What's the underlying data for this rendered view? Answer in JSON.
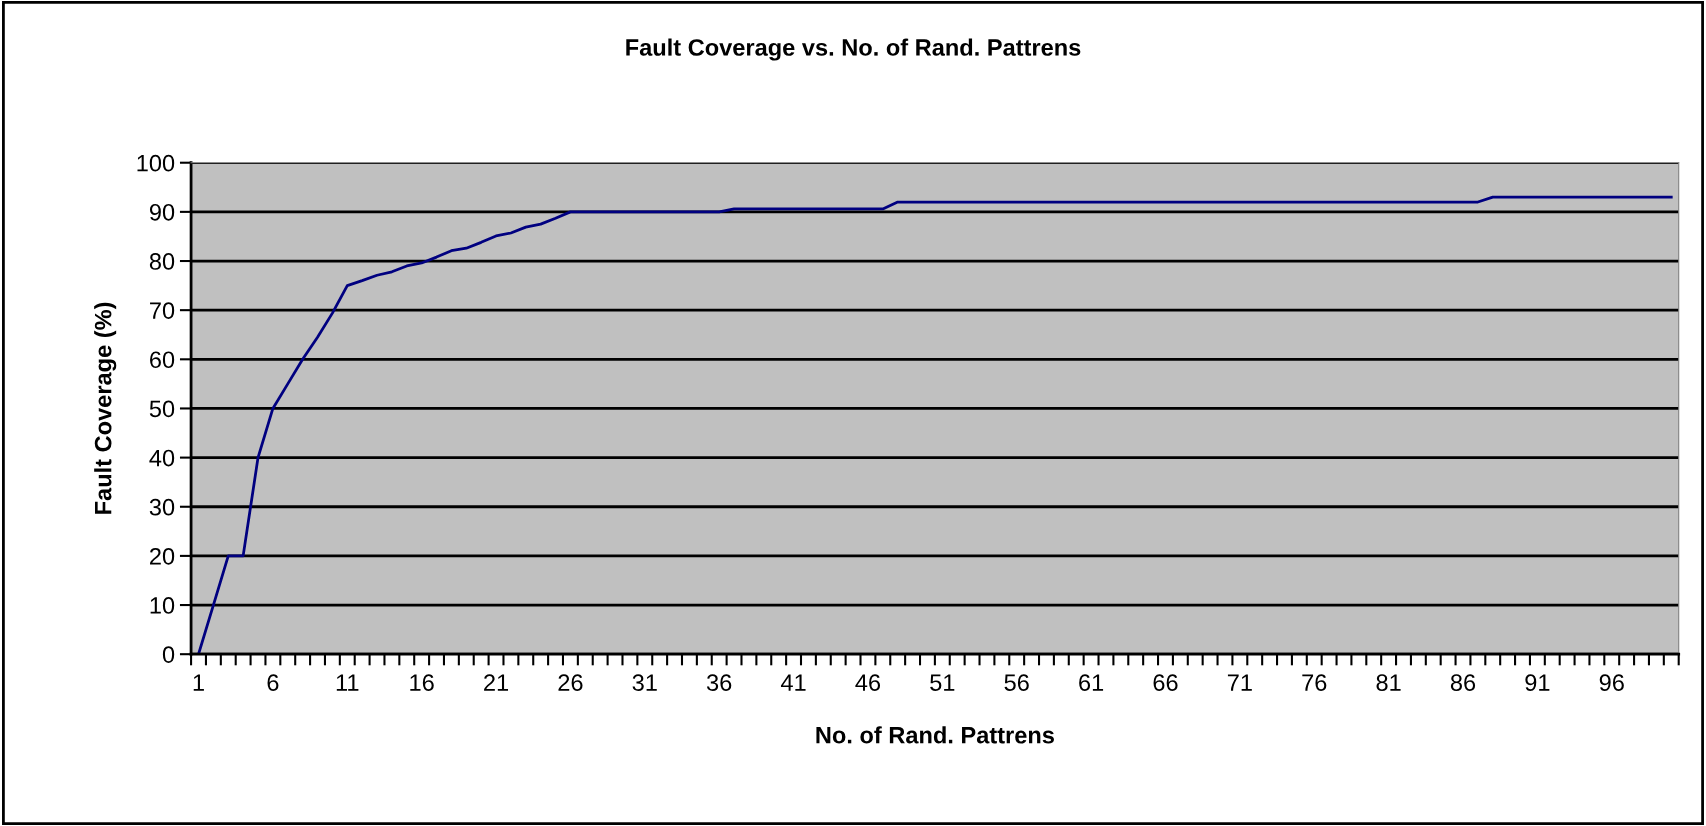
{
  "chart_data": {
    "type": "line",
    "title": "Fault Coverage vs. No. of Rand. Pattrens",
    "xlabel": "No. of Rand. Pattrens",
    "ylabel": "Fault Coverage (%)",
    "categories": [
      "1",
      null,
      null,
      null,
      null,
      "6",
      null,
      null,
      null,
      null,
      "11",
      null,
      null,
      null,
      null,
      "16",
      null,
      null,
      null,
      null,
      "21",
      null,
      null,
      null,
      null,
      "26",
      null,
      null,
      null,
      null,
      "31",
      null,
      null,
      null,
      null,
      "36",
      null,
      null,
      null,
      null,
      "41",
      null,
      null,
      null,
      null,
      "46",
      null,
      null,
      null,
      null,
      "51",
      null,
      null,
      null,
      null,
      "56",
      null,
      null,
      null,
      null,
      "61",
      null,
      null,
      null,
      null,
      "66",
      null,
      null,
      null,
      null,
      "71",
      null,
      null,
      null,
      null,
      "76",
      null,
      null,
      null,
      null,
      "81",
      null,
      null,
      null,
      null,
      "86",
      null,
      null,
      null,
      null,
      "91",
      null,
      null,
      null,
      null,
      "96",
      null,
      null,
      null,
      null
    ],
    "series": [
      {
        "color": "#000080",
        "values": [
          0,
          10,
          20,
          20,
          40,
          50,
          55,
          60,
          64.5,
          69.4,
          75,
          76,
          77.1,
          77.8,
          79,
          79.6,
          80.8,
          82.1,
          82.6,
          83.8,
          85.1,
          85.7,
          86.9,
          87.5,
          88.7,
          90,
          90,
          90,
          90,
          90,
          90,
          90,
          90,
          90,
          90,
          90,
          90.6,
          90.6,
          90.6,
          90.6,
          90.6,
          90.6,
          90.6,
          90.6,
          90.6,
          90.6,
          90.6,
          92,
          92,
          92,
          92,
          92,
          92,
          92,
          92,
          92,
          92,
          92,
          92,
          92,
          92,
          92,
          92,
          92,
          92,
          92,
          92,
          92,
          92,
          92,
          92,
          92,
          92,
          92,
          92,
          92,
          92,
          92,
          92,
          92,
          92,
          92,
          92,
          92,
          92,
          92,
          92,
          93,
          93,
          93,
          93,
          93,
          93,
          93,
          93,
          93,
          93,
          93,
          93,
          93
        ]
      }
    ],
    "ylim": [
      0,
      100
    ],
    "yticks": [
      0,
      10,
      20,
      30,
      40,
      50,
      60,
      70,
      80,
      90,
      100
    ],
    "grid": "y",
    "legend": false,
    "marker": "none",
    "line_style": "solid"
  }
}
